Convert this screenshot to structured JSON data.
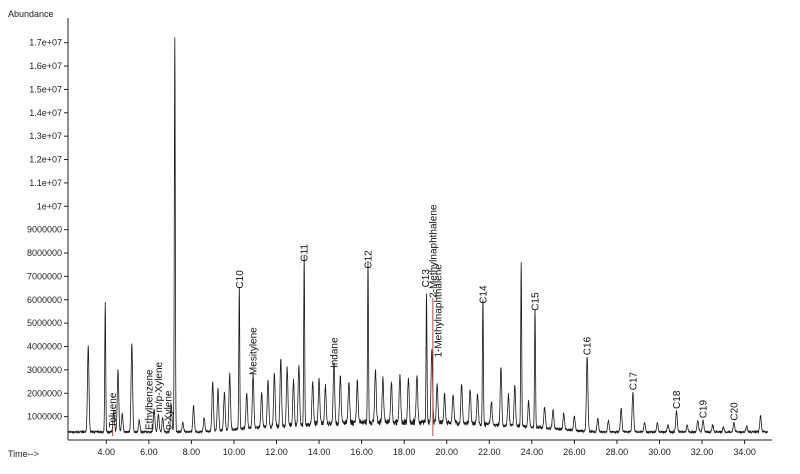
{
  "chart_data": {
    "type": "line",
    "title": "",
    "ylabel": "Abundance",
    "xlabel": "Time-->",
    "xlim": [
      2.2,
      35.1
    ],
    "ylim": [
      0,
      17800000
    ],
    "colors": {
      "trace": "#1a1a1a",
      "marker": "#b03030",
      "axis": "#222222"
    },
    "y_ticks": [
      {
        "value": 1000000,
        "label": "1000000"
      },
      {
        "value": 2000000,
        "label": "2000000"
      },
      {
        "value": 3000000,
        "label": "3000000"
      },
      {
        "value": 4000000,
        "label": "4000000"
      },
      {
        "value": 5000000,
        "label": "5000000"
      },
      {
        "value": 6000000,
        "label": "6000000"
      },
      {
        "value": 7000000,
        "label": "7000000"
      },
      {
        "value": 8000000,
        "label": "8000000"
      },
      {
        "value": 9000000,
        "label": "9000000"
      },
      {
        "value": 10000000,
        "label": "1e+07"
      },
      {
        "value": 11000000,
        "label": "1.1e+07"
      },
      {
        "value": 12000000,
        "label": "1.2e+07"
      },
      {
        "value": 13000000,
        "label": "1.3e+07"
      },
      {
        "value": 14000000,
        "label": "1.4e+07"
      },
      {
        "value": 15000000,
        "label": "1.5e+07"
      },
      {
        "value": 16000000,
        "label": "1.6e+07"
      },
      {
        "value": 17000000,
        "label": "1.7e+07"
      }
    ],
    "x_ticks": [
      {
        "value": 4,
        "label": "4.00"
      },
      {
        "value": 6,
        "label": "6.00"
      },
      {
        "value": 8,
        "label": "8.00"
      },
      {
        "value": 10,
        "label": "10.00"
      },
      {
        "value": 12,
        "label": "12.00"
      },
      {
        "value": 14,
        "label": "14.00"
      },
      {
        "value": 16,
        "label": "16.00"
      },
      {
        "value": 18,
        "label": "18.00"
      },
      {
        "value": 20,
        "label": "20.00"
      },
      {
        "value": 22,
        "label": "22.00"
      },
      {
        "value": 24,
        "label": "24.00"
      },
      {
        "value": 26,
        "label": "26.00"
      },
      {
        "value": 28,
        "label": "28.00"
      },
      {
        "value": 30,
        "label": "30.00"
      },
      {
        "value": 32,
        "label": "32.00"
      },
      {
        "value": 34,
        "label": "34.00"
      }
    ],
    "baseline": 300000,
    "peaks": [
      {
        "x": 3.15,
        "y": 4000000
      },
      {
        "x": 3.95,
        "y": 5850000
      },
      {
        "x": 4.35,
        "y": 1200000
      },
      {
        "x": 4.55,
        "y": 2950000
      },
      {
        "x": 4.75,
        "y": 1100000
      },
      {
        "x": 5.2,
        "y": 4100000
      },
      {
        "x": 5.55,
        "y": 800000
      },
      {
        "x": 6.25,
        "y": 1300000
      },
      {
        "x": 6.45,
        "y": 1050000
      },
      {
        "x": 6.65,
        "y": 900000
      },
      {
        "x": 7.05,
        "y": 1500000
      },
      {
        "x": 7.22,
        "y": 17200000
      },
      {
        "x": 7.6,
        "y": 700000
      },
      {
        "x": 8.1,
        "y": 1400000
      },
      {
        "x": 8.6,
        "y": 900000
      },
      {
        "x": 9.0,
        "y": 2400000
      },
      {
        "x": 9.25,
        "y": 2100000
      },
      {
        "x": 9.55,
        "y": 1900000
      },
      {
        "x": 9.8,
        "y": 2700000
      },
      {
        "x": 10.25,
        "y": 6350000
      },
      {
        "x": 10.6,
        "y": 1800000
      },
      {
        "x": 10.9,
        "y": 2600000
      },
      {
        "x": 11.3,
        "y": 1800000
      },
      {
        "x": 11.6,
        "y": 2300000
      },
      {
        "x": 11.9,
        "y": 2600000
      },
      {
        "x": 12.2,
        "y": 3200000
      },
      {
        "x": 12.5,
        "y": 2800000
      },
      {
        "x": 12.8,
        "y": 2200000
      },
      {
        "x": 13.05,
        "y": 2900000
      },
      {
        "x": 13.3,
        "y": 7500000
      },
      {
        "x": 13.7,
        "y": 2100000
      },
      {
        "x": 14.0,
        "y": 2200000
      },
      {
        "x": 14.3,
        "y": 1900000
      },
      {
        "x": 14.7,
        "y": 2900000
      },
      {
        "x": 15.0,
        "y": 2400000
      },
      {
        "x": 15.4,
        "y": 2000000
      },
      {
        "x": 15.8,
        "y": 2100000
      },
      {
        "x": 16.3,
        "y": 7200000
      },
      {
        "x": 16.65,
        "y": 2600000
      },
      {
        "x": 17.0,
        "y": 2200000
      },
      {
        "x": 17.4,
        "y": 2000000
      },
      {
        "x": 17.8,
        "y": 2300000
      },
      {
        "x": 18.2,
        "y": 2200000
      },
      {
        "x": 18.6,
        "y": 2300000
      },
      {
        "x": 19.05,
        "y": 5700000
      },
      {
        "x": 19.3,
        "y": 3400000
      },
      {
        "x": 19.55,
        "y": 1900000
      },
      {
        "x": 19.9,
        "y": 1500000
      },
      {
        "x": 20.3,
        "y": 1600000
      },
      {
        "x": 20.7,
        "y": 2000000
      },
      {
        "x": 21.1,
        "y": 1800000
      },
      {
        "x": 21.45,
        "y": 1600000
      },
      {
        "x": 21.7,
        "y": 5700000
      },
      {
        "x": 22.1,
        "y": 1300000
      },
      {
        "x": 22.55,
        "y": 2800000
      },
      {
        "x": 22.9,
        "y": 1600000
      },
      {
        "x": 23.2,
        "y": 2000000
      },
      {
        "x": 23.5,
        "y": 7300000
      },
      {
        "x": 23.85,
        "y": 1400000
      },
      {
        "x": 24.15,
        "y": 5400000
      },
      {
        "x": 24.6,
        "y": 1200000
      },
      {
        "x": 25.0,
        "y": 1100000
      },
      {
        "x": 25.5,
        "y": 1000000
      },
      {
        "x": 26.0,
        "y": 900000
      },
      {
        "x": 26.6,
        "y": 3500000
      },
      {
        "x": 27.1,
        "y": 900000
      },
      {
        "x": 27.6,
        "y": 800000
      },
      {
        "x": 28.2,
        "y": 1300000
      },
      {
        "x": 28.75,
        "y": 2000000
      },
      {
        "x": 29.3,
        "y": 700000
      },
      {
        "x": 29.9,
        "y": 700000
      },
      {
        "x": 30.4,
        "y": 600000
      },
      {
        "x": 30.8,
        "y": 1200000
      },
      {
        "x": 31.3,
        "y": 600000
      },
      {
        "x": 31.8,
        "y": 800000
      },
      {
        "x": 32.05,
        "y": 800000
      },
      {
        "x": 32.5,
        "y": 600000
      },
      {
        "x": 33.0,
        "y": 500000
      },
      {
        "x": 33.5,
        "y": 700000
      },
      {
        "x": 34.1,
        "y": 550000
      },
      {
        "x": 34.75,
        "y": 1000000
      }
    ],
    "annotations": [
      {
        "text": "Toluene",
        "x": 4.3,
        "y": 400000,
        "marker": true
      },
      {
        "text": "Ethylbenzene",
        "x": 6.0,
        "y": 300000,
        "marker": false
      },
      {
        "text": "m/p-Xylene",
        "x": 6.45,
        "y": 1050000,
        "marker": false
      },
      {
        "text": "o-Xylene",
        "x": 6.9,
        "y": 300000,
        "marker": false
      },
      {
        "text": "C10",
        "x": 10.25,
        "y": 6350000,
        "marker": false
      },
      {
        "text": "Mesitylene",
        "x": 10.9,
        "y": 2650000,
        "marker": false
      },
      {
        "text": "C11",
        "x": 13.3,
        "y": 7500000,
        "marker": false
      },
      {
        "text": "Indane",
        "x": 14.7,
        "y": 2950000,
        "marker": false
      },
      {
        "text": "C12",
        "x": 16.3,
        "y": 7200000,
        "marker": false
      },
      {
        "text": "C13",
        "x": 19.0,
        "y": 6400000,
        "marker": false
      },
      {
        "text": "2-Methylnaphthalene",
        "x": 19.35,
        "y": 5950000,
        "marker": true
      },
      {
        "text": "1-Methylnaphthalene",
        "x": 19.6,
        "y": 3400000,
        "marker": false
      },
      {
        "text": "C14",
        "x": 21.7,
        "y": 5700000,
        "marker": false
      },
      {
        "text": "C15",
        "x": 24.15,
        "y": 5400000,
        "marker": false
      },
      {
        "text": "C16",
        "x": 26.6,
        "y": 3500000,
        "marker": false
      },
      {
        "text": "C17",
        "x": 28.75,
        "y": 2000000,
        "marker": false
      },
      {
        "text": "C18",
        "x": 30.8,
        "y": 1200000,
        "marker": false
      },
      {
        "text": "C19",
        "x": 32.05,
        "y": 800000,
        "marker": false
      },
      {
        "text": "C20",
        "x": 33.5,
        "y": 700000,
        "marker": false
      }
    ]
  }
}
